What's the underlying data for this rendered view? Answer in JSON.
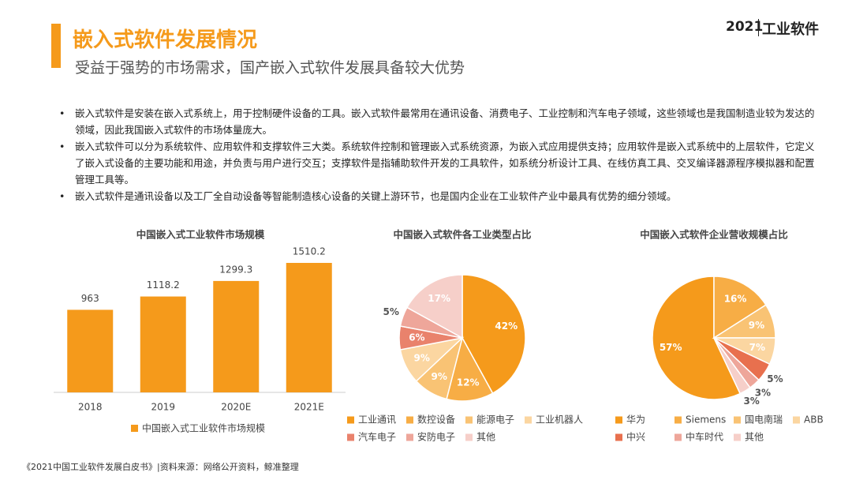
{
  "header": {
    "title": "嵌入式软件发展情况",
    "subtitle": "受益于强势的市场需求，国产嵌入式软件发展具备较大优势",
    "logo_year": "2021",
    "logo_text": "工业软件"
  },
  "bullets": [
    "嵌入式软件是安装在嵌入式系统上，用于控制硬件设备的工具。嵌入式软件最常用在通讯设备、消费电子、工业控制和汽车电子领域，这些领域也是我国制造业较为发达的领域，因此我国嵌入式软件的市场体量庞大。",
    "嵌入式软件可以分为系统软件、应用软件和支撑软件三大类。系统软件控制和管理嵌入式系统资源，为嵌入式应用提供支持；应用软件是嵌入式系统中的上层软件，它定义了嵌入式设备的主要功能和用途，并负责与用户进行交互；支撑软件是指辅助软件开发的工具软件，如系统分析设计工具、在线仿真工具、交叉编译器源程序模拟器和配置管理工具等。",
    "嵌入式软件是通讯设备以及工厂全自动设备等智能制造核心设备的关键上游环节，也是国内企业在工业软件产业中最具有优势的细分领域。"
  ],
  "chart_data": [
    {
      "type": "bar",
      "title": "中国嵌入式工业软件市场规模",
      "categories": [
        "2018",
        "2019",
        "2020E",
        "2021E"
      ],
      "series": [
        {
          "name": "中国嵌入式工业软件市场规模",
          "color": "#f59a1b",
          "values": [
            963,
            1118.2,
            1299.3,
            1510.2
          ]
        }
      ]
    },
    {
      "type": "pie",
      "title": "中国嵌入式软件各工业类型占比",
      "startangle": 0,
      "categories": [
        "工业通讯",
        "数控设备",
        "能源电子",
        "工业机器人",
        "汽车电子",
        "安防电子",
        "其他"
      ],
      "values": [
        42,
        12,
        9,
        9,
        6,
        5,
        17
      ],
      "value_labels": [
        "42%",
        "12%",
        "9%",
        "9%",
        "6%",
        "5%",
        "17%"
      ],
      "colors": [
        "#f59a1b",
        "#f7ad45",
        "#f9c374",
        "#fbd6a1",
        "#e9826c",
        "#eea69a",
        "#f6cfc9"
      ]
    },
    {
      "type": "pie",
      "title": "中国嵌入式软件企业营收规模占比",
      "startangle": 154.8,
      "categories": [
        "华为",
        "Siemens",
        "国电南瑞",
        "ABB",
        "中兴",
        "中车时代",
        "其他"
      ],
      "values": [
        57,
        16,
        9,
        7,
        5,
        3,
        3
      ],
      "value_labels": [
        "57%",
        "16%",
        "9%",
        "7%",
        "5%",
        "3%",
        "3%"
      ],
      "colors": [
        "#f59a1b",
        "#f7ad45",
        "#f9c374",
        "#fbd6a1",
        "#e8704e",
        "#eea69a",
        "#f6cfc9"
      ]
    }
  ],
  "footer": "《2021中国工业软件发展白皮书》|资料来源：网络公开资料，鲸准整理"
}
